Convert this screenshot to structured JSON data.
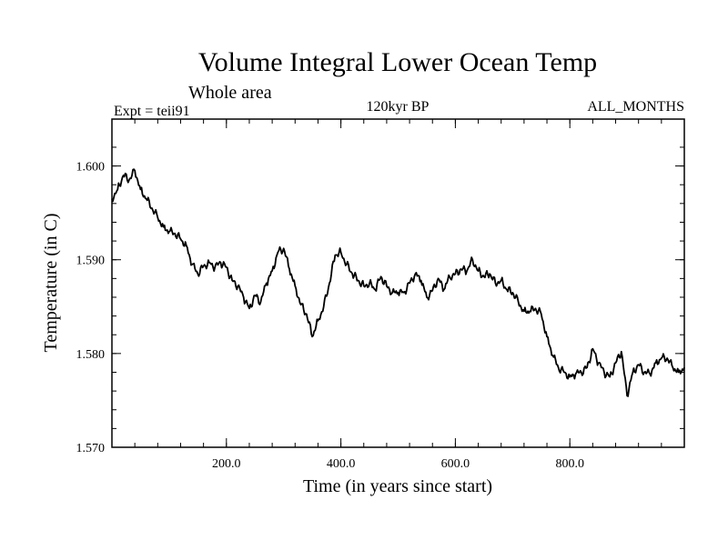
{
  "chart_data": {
    "type": "line",
    "title": "Volume Integral Lower Ocean Temp",
    "subtitle": "Whole area",
    "experiment": "Expt = teii91",
    "period": "120kyr BP",
    "months": "ALL_MONTHS",
    "xlabel": "Time (in years since start)",
    "ylabel": "Temperature (in C)",
    "xlim": [
      0,
      1000
    ],
    "ylim": [
      1.57,
      1.605
    ],
    "x_ticks": [
      {
        "value": 200,
        "label": "200.0"
      },
      {
        "value": 400,
        "label": "400.0"
      },
      {
        "value": 600,
        "label": "600.0"
      },
      {
        "value": 800,
        "label": "800.0"
      }
    ],
    "y_ticks": [
      {
        "value": 1.57,
        "label": "1.570"
      },
      {
        "value": 1.58,
        "label": "1.580"
      },
      {
        "value": 1.59,
        "label": "1.590"
      },
      {
        "value": 1.6,
        "label": "1.600"
      }
    ],
    "grid": false,
    "color": "#000000",
    "x": [
      0,
      10,
      20,
      30,
      40,
      50,
      60,
      70,
      80,
      90,
      100,
      110,
      120,
      130,
      140,
      150,
      160,
      170,
      180,
      190,
      200,
      210,
      220,
      230,
      240,
      250,
      260,
      270,
      280,
      290,
      300,
      310,
      320,
      330,
      340,
      350,
      360,
      370,
      380,
      390,
      400,
      410,
      420,
      430,
      440,
      450,
      460,
      470,
      480,
      490,
      500,
      510,
      520,
      530,
      540,
      550,
      560,
      570,
      580,
      590,
      600,
      610,
      620,
      630,
      640,
      650,
      660,
      670,
      680,
      690,
      700,
      710,
      720,
      730,
      740,
      750,
      760,
      770,
      780,
      790,
      800,
      810,
      820,
      830,
      840,
      850,
      860,
      870,
      880,
      890,
      900,
      910,
      920,
      930,
      940,
      950,
      960,
      970,
      980,
      990,
      1000
    ],
    "y": [
      1.5965,
      1.5975,
      1.599,
      1.5985,
      1.5995,
      1.5975,
      1.5965,
      1.5955,
      1.5945,
      1.5935,
      1.593,
      1.5928,
      1.5922,
      1.5915,
      1.5895,
      1.5885,
      1.5893,
      1.5897,
      1.5892,
      1.5897,
      1.5892,
      1.5878,
      1.5872,
      1.586,
      1.5848,
      1.5862,
      1.5855,
      1.5875,
      1.5888,
      1.5908,
      1.5912,
      1.589,
      1.5872,
      1.5852,
      1.5842,
      1.5818,
      1.5835,
      1.585,
      1.5875,
      1.5905,
      1.5908,
      1.5895,
      1.5885,
      1.5878,
      1.5872,
      1.5875,
      1.5868,
      1.5882,
      1.5872,
      1.5865,
      1.5865,
      1.5865,
      1.5875,
      1.5885,
      1.5878,
      1.586,
      1.5867,
      1.588,
      1.5868,
      1.5882,
      1.5885,
      1.589,
      1.5888,
      1.59,
      1.5888,
      1.5882,
      1.5885,
      1.5875,
      1.5878,
      1.5868,
      1.5865,
      1.5855,
      1.5845,
      1.5845,
      1.5848,
      1.5842,
      1.5818,
      1.5798,
      1.5785,
      1.578,
      1.5775,
      1.5778,
      1.578,
      1.5785,
      1.5805,
      1.579,
      1.578,
      1.5775,
      1.579,
      1.5802,
      1.5755,
      1.578,
      1.5788,
      1.578,
      1.5778,
      1.579,
      1.5795,
      1.5795,
      1.5785,
      1.578,
      1.5785
    ]
  }
}
